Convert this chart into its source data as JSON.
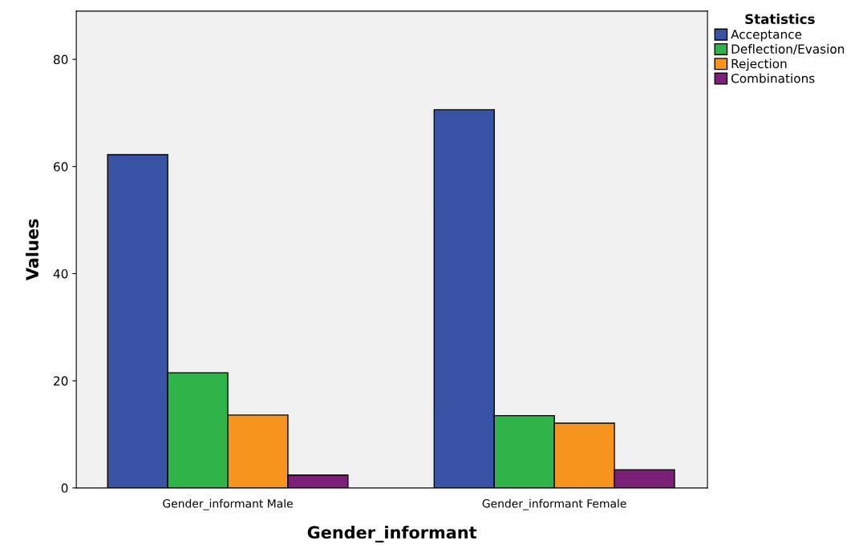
{
  "chart_data": {
    "type": "bar",
    "xlabel": "Gender_informant",
    "ylabel": "Values",
    "legend_title": "Statistics",
    "legend": "top right",
    "categories": [
      "Gender_informant Male",
      "Gender_informant Female"
    ],
    "series": [
      {
        "name": "Acceptance",
        "color": "#3953a4",
        "values": [
          62.2,
          70.6
        ]
      },
      {
        "name": "Deflection/Evasion",
        "color": "#30b44a",
        "values": [
          21.5,
          13.5
        ]
      },
      {
        "name": "Rejection",
        "color": "#f7941d",
        "values": [
          13.6,
          12.1
        ]
      },
      {
        "name": "Combinations",
        "color": "#7b1f79",
        "values": [
          2.4,
          3.4
        ]
      }
    ],
    "ylim": [
      0,
      89
    ],
    "yticks": [
      0,
      20,
      40,
      60,
      80
    ],
    "grid": false
  }
}
